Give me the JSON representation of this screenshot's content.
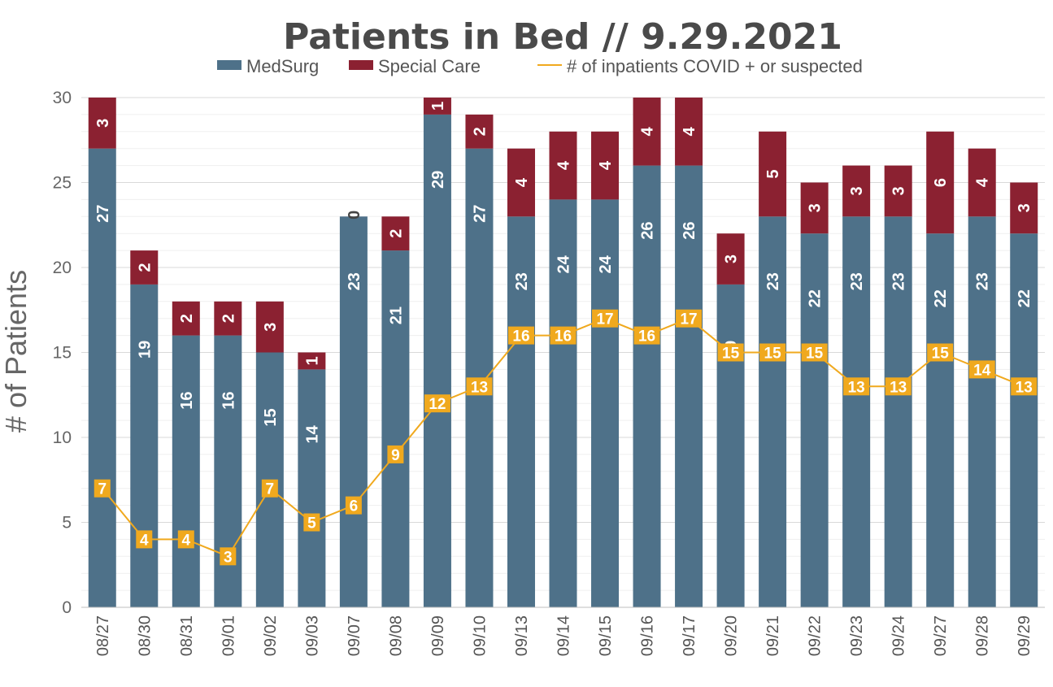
{
  "chart_data": {
    "type": "bar",
    "stacked": true,
    "title": "Patients in Bed // 9.29.2021",
    "ylabel": "# of Patients",
    "xlabel": "",
    "ylim": [
      0,
      30
    ],
    "yticks": [
      0,
      5,
      10,
      15,
      20,
      25,
      30
    ],
    "grid": true,
    "legend_position": "top",
    "categories": [
      "08/27",
      "08/30",
      "08/31",
      "09/01",
      "09/02",
      "09/03",
      "09/07",
      "09/08",
      "09/09",
      "09/10",
      "09/13",
      "09/14",
      "09/15",
      "09/16",
      "09/17",
      "09/20",
      "09/21",
      "09/22",
      "09/23",
      "09/24",
      "09/27",
      "09/28",
      "09/29"
    ],
    "series": [
      {
        "name": "MedSurg",
        "kind": "bar",
        "color": "#4e7189",
        "values": [
          27,
          19,
          16,
          16,
          15,
          14,
          23,
          21,
          29,
          27,
          23,
          24,
          24,
          26,
          26,
          19,
          23,
          22,
          23,
          23,
          22,
          23,
          22
        ]
      },
      {
        "name": "Special Care",
        "kind": "bar",
        "color": "#8b2131",
        "values": [
          3,
          2,
          2,
          2,
          3,
          1,
          0,
          2,
          1,
          2,
          4,
          4,
          4,
          4,
          4,
          3,
          5,
          3,
          3,
          3,
          6,
          4,
          3
        ]
      },
      {
        "name": "# of inpatients COVID + or suspected",
        "kind": "line",
        "color": "#f0a91e",
        "values": [
          7,
          4,
          4,
          3,
          7,
          5,
          6,
          9,
          12,
          13,
          16,
          16,
          17,
          16,
          17,
          15,
          15,
          15,
          13,
          13,
          15,
          14,
          13
        ]
      }
    ]
  }
}
